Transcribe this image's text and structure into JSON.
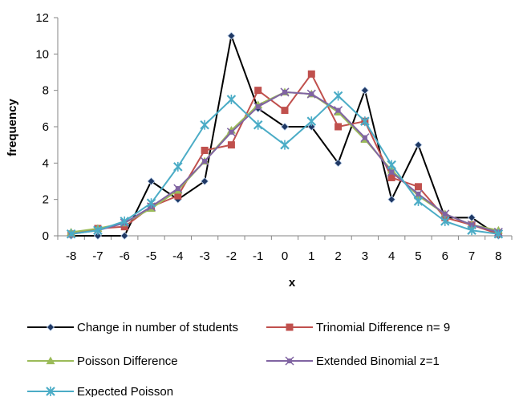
{
  "chart_data": {
    "type": "line",
    "title": "",
    "xlabel": "x",
    "ylabel": "frequency",
    "x": [
      -8,
      -7,
      -6,
      -5,
      -4,
      -3,
      -2,
      -1,
      0,
      1,
      2,
      3,
      4,
      5,
      6,
      7,
      8
    ],
    "x_tick_labels": [
      "-8",
      "-7",
      "-6",
      "-5",
      "-4",
      "-3",
      "-2",
      "-1",
      "0",
      "1",
      "2",
      "3",
      "4",
      "5",
      "6",
      "7",
      "8"
    ],
    "ylim": [
      0,
      12
    ],
    "y_ticks": [
      0,
      2,
      4,
      6,
      8,
      10,
      12
    ],
    "y_tick_labels": [
      "0",
      "2",
      "4",
      "6",
      "8",
      "10",
      "12"
    ],
    "grid": false,
    "legend_position": "bottom",
    "series": [
      {
        "name": "Change in number of students",
        "color": "#000000",
        "marker_color": "#1f3864",
        "marker": "diamond",
        "values": [
          0,
          0,
          0,
          3,
          2,
          3,
          11,
          7,
          6,
          6,
          4,
          8,
          2,
          5,
          1,
          1,
          0
        ]
      },
      {
        "name": "Trinomial Difference n= 9",
        "color": "#c0504d",
        "marker_color": "#c0504d",
        "marker": "square",
        "values": [
          0.1,
          0.4,
          0.5,
          1.6,
          2.2,
          4.7,
          5.0,
          8.0,
          6.9,
          8.9,
          6.0,
          6.3,
          3.2,
          2.7,
          1.0,
          0.6,
          0.1
        ]
      },
      {
        "name": "Poisson Difference",
        "color": "#9bbb59",
        "marker_color": "#9bbb59",
        "marker": "triangle",
        "values": [
          0.2,
          0.4,
          0.7,
          1.5,
          2.5,
          4.1,
          5.8,
          7.2,
          7.9,
          7.8,
          6.8,
          5.3,
          3.6,
          2.2,
          1.2,
          0.6,
          0.3
        ]
      },
      {
        "name": "Extended Binomial z=1",
        "color": "#8064a2",
        "marker_color": "#8064a2",
        "marker": "star",
        "values": [
          0.1,
          0.3,
          0.7,
          1.6,
          2.6,
          4.1,
          5.7,
          7.1,
          7.9,
          7.8,
          6.9,
          5.4,
          3.5,
          2.3,
          1.2,
          0.6,
          0.2
        ]
      },
      {
        "name": "Expected Poisson",
        "color": "#4bacc6",
        "marker_color": "#4bacc6",
        "marker": "x",
        "values": [
          0.1,
          0.3,
          0.8,
          1.8,
          3.8,
          6.1,
          7.5,
          6.1,
          5.0,
          6.3,
          7.7,
          6.3,
          3.9,
          1.9,
          0.8,
          0.3,
          0.1
        ]
      }
    ]
  }
}
